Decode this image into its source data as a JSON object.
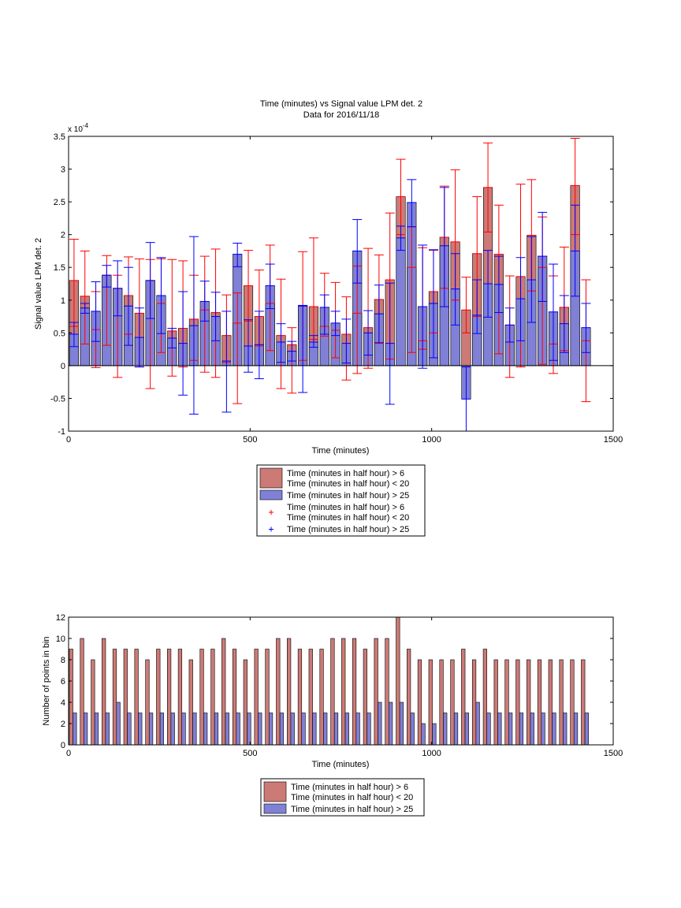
{
  "chart_data": [
    {
      "type": "bar",
      "title": "Time (minutes) vs Signal value LPM det. 2",
      "subtitle": "Data for 2016/11/18",
      "xlabel": "Time (minutes)",
      "ylabel": "Signal value LPM det. 2",
      "exponent_label": "x 10",
      "exponent_power": "-4",
      "xlim": [
        0,
        1500
      ],
      "ylim": [
        -1,
        3.5
      ],
      "xticks": [
        "0",
        "500",
        "1000",
        "1500"
      ],
      "yticks": [
        "-1",
        "-0.5",
        "0",
        "0.5",
        "1",
        "1.5",
        "2",
        "2.5",
        "3",
        "3.5"
      ],
      "ytick_values": [
        -1,
        -0.5,
        0,
        0.5,
        1,
        1.5,
        2,
        2.5,
        3,
        3.5
      ],
      "grid": false,
      "legend_position": "below plot",
      "legend": [
        {
          "label": "Time (minutes in half hour) > 6\nTime (minutes in half hour) < 20",
          "kind": "patch",
          "color": "#cc7a76"
        },
        {
          "label": "Time (minutes in half hour) > 25",
          "kind": "patch",
          "color": "#8080d6"
        },
        {
          "label": "Time (minutes in half hour) > 6\nTime (minutes in half hour) < 20",
          "kind": "marker",
          "color": "#ff0000"
        },
        {
          "label": "Time (minutes in half hour) > 25",
          "kind": "marker",
          "color": "#0000ff"
        }
      ],
      "series": [
        {
          "color": "#cc7a76",
          "errcolor": "#ff0000",
          "x": [
            15,
            45,
            75,
            105,
            135,
            165,
            195,
            225,
            255,
            285,
            315,
            345,
            375,
            405,
            435,
            465,
            495,
            525,
            555,
            585,
            615,
            645,
            675,
            705,
            735,
            765,
            795,
            825,
            855,
            885,
            915,
            945,
            975,
            1005,
            1035,
            1065,
            1095,
            1125,
            1155,
            1185,
            1215,
            1245,
            1275,
            1305,
            1335,
            1365,
            1395,
            1425
          ],
          "values": [
            1.3,
            1.06,
            0.55,
            1.38,
            1.18,
            1.07,
            0.8,
            1.3,
            0.95,
            0.53,
            0.57,
            0.71,
            0.85,
            0.81,
            0.46,
            0.65,
            1.22,
            0.75,
            0.95,
            0.46,
            0.32,
            0.91,
            0.9,
            0.6,
            0.54,
            0.48,
            0.8,
            0.58,
            1.01,
            1.31,
            2.58,
            1.5,
            0.38,
            1.13,
            1.96,
            1.89,
            0.85,
            1.71,
            2.72,
            1.7,
            0.62,
            1.36,
            1.99,
            1.5,
            0.33,
            0.89,
            2.75,
            0.38
          ],
          "err_low": [
            0.6,
            0.33,
            -0.03,
            0.31,
            -0.18,
            0.48,
            -0.02,
            -0.35,
            0.2,
            -0.16,
            -0.02,
            0.08,
            -0.1,
            -0.18,
            0.05,
            -0.58,
            0.68,
            0.3,
            0.23,
            -0.35,
            -0.42,
            0.08,
            0.4,
            0.45,
            0.12,
            -0.22,
            -0.12,
            -0.04,
            0.34,
            0.1,
            2.0,
            0.2,
            0.25,
            0.5,
            1.18,
            1.0,
            0.5,
            0.75,
            2.04,
            0.18,
            -0.18,
            -0.02,
            1.14,
            0.02,
            -0.12,
            0.23,
            2.0,
            -0.55
          ],
          "err_high": [
            1.93,
            1.75,
            1.13,
            1.68,
            1.38,
            1.66,
            1.63,
            1.62,
            1.63,
            1.62,
            1.6,
            1.38,
            1.67,
            1.78,
            1.08,
            1.11,
            1.76,
            1.46,
            1.84,
            1.32,
            0.58,
            1.74,
            1.95,
            1.41,
            1.27,
            1.05,
            1.52,
            1.79,
            1.69,
            2.33,
            3.15,
            2.12,
            1.8,
            1.76,
            2.74,
            2.99,
            1.35,
            2.58,
            3.4,
            2.45,
            1.37,
            2.77,
            2.84,
            2.27,
            1.37,
            1.81,
            3.47,
            1.31
          ]
        },
        {
          "color": "#8080d6",
          "errcolor": "#0000ff",
          "x": [
            15,
            45,
            75,
            105,
            135,
            165,
            195,
            225,
            255,
            285,
            315,
            345,
            375,
            405,
            435,
            465,
            495,
            525,
            555,
            585,
            615,
            645,
            675,
            705,
            735,
            765,
            795,
            825,
            855,
            885,
            915,
            945,
            975,
            1005,
            1035,
            1065,
            1095,
            1125,
            1155,
            1185,
            1215,
            1245,
            1275,
            1305,
            1335,
            1365,
            1395,
            1425
          ],
          "values": [
            0.48,
            0.88,
            0.83,
            1.38,
            1.18,
            0.91,
            0.43,
            1.3,
            1.07,
            0.42,
            0.34,
            0.61,
            0.98,
            0.75,
            0.07,
            1.7,
            0.3,
            0.32,
            1.22,
            0.36,
            0.22,
            0.91,
            0.36,
            0.89,
            0.65,
            0.34,
            1.75,
            0.5,
            0.79,
            0.34,
            1.95,
            2.49,
            0.9,
            0.95,
            1.83,
            1.17,
            -0.51,
            0.77,
            1.25,
            1.24,
            0.62,
            1.02,
            1.31,
            1.67,
            0.82,
            0.64,
            1.75,
            0.58
          ],
          "err_low": [
            0.29,
            0.8,
            0.37,
            1.2,
            0.76,
            0.31,
            -0.02,
            0.72,
            0.49,
            0.27,
            -0.45,
            -0.74,
            0.68,
            0.38,
            -0.71,
            1.51,
            -0.1,
            -0.2,
            0.87,
            0.05,
            0.07,
            -0.41,
            0.28,
            0.48,
            0.46,
            0.04,
            1.26,
            0.16,
            0.35,
            -0.59,
            1.76,
            2.12,
            -0.04,
            0.12,
            0.9,
            0.62,
            -1.0,
            0.49,
            0.74,
            0.81,
            0.36,
            0.38,
            0.66,
            0.98,
            0.08,
            0.2,
            1.06,
            0.2
          ],
          "err_high": [
            0.66,
            0.95,
            1.28,
            1.53,
            1.6,
            1.5,
            0.88,
            1.88,
            1.65,
            0.57,
            1.13,
            1.97,
            1.29,
            1.12,
            0.83,
            1.87,
            0.7,
            0.83,
            1.55,
            0.64,
            0.37,
            0.92,
            0.46,
            1.08,
            0.83,
            0.71,
            2.23,
            0.84,
            1.23,
            1.26,
            2.13,
            2.84,
            1.84,
            1.77,
            2.72,
            1.71,
            -0.02,
            1.31,
            1.76,
            1.67,
            0.88,
            1.65,
            1.97,
            2.34,
            1.55,
            1.07,
            2.45,
            0.95
          ]
        }
      ]
    },
    {
      "type": "bar",
      "title": "",
      "xlabel": "Time (minutes)",
      "ylabel": "Number of points in bin",
      "xlim": [
        0,
        1500
      ],
      "ylim": [
        0,
        12
      ],
      "xticks": [
        "0",
        "500",
        "1000",
        "1500"
      ],
      "yticks": [
        "0",
        "2",
        "4",
        "6",
        "8",
        "10",
        "12"
      ],
      "ytick_values": [
        0,
        2,
        4,
        6,
        8,
        10,
        12
      ],
      "grid": false,
      "legend_position": "below plot",
      "legend": [
        {
          "label": "Time (minutes in half hour) > 6\nTime (minutes in half hour) < 20",
          "kind": "patch",
          "color": "#cc7a76"
        },
        {
          "label": "Time (minutes in half hour) > 25",
          "kind": "patch",
          "color": "#8080d6"
        }
      ],
      "series": [
        {
          "color": "#cc7a76",
          "x": [
            7,
            37,
            67,
            97,
            127,
            157,
            187,
            217,
            247,
            277,
            307,
            337,
            367,
            397,
            427,
            457,
            487,
            517,
            547,
            577,
            607,
            637,
            667,
            697,
            727,
            757,
            787,
            817,
            847,
            877,
            907,
            937,
            967,
            997,
            1027,
            1057,
            1087,
            1117,
            1147,
            1177,
            1207,
            1237,
            1267,
            1297,
            1327,
            1357,
            1387,
            1417
          ],
          "values": [
            9,
            10,
            8,
            10,
            9,
            9,
            9,
            8,
            9,
            9,
            9,
            8,
            9,
            9,
            10,
            9,
            8,
            9,
            9,
            10,
            10,
            9,
            9,
            9,
            10,
            10,
            10,
            9,
            10,
            10,
            12,
            9,
            8,
            8,
            8,
            8,
            9,
            8,
            9,
            8,
            8,
            8,
            8,
            8,
            8,
            8,
            8,
            8
          ]
        },
        {
          "color": "#8080d6",
          "x": [
            17,
            47,
            77,
            107,
            137,
            167,
            197,
            227,
            257,
            287,
            317,
            347,
            377,
            407,
            437,
            467,
            497,
            527,
            557,
            587,
            617,
            647,
            677,
            707,
            737,
            767,
            797,
            827,
            857,
            887,
            917,
            947,
            977,
            1007,
            1037,
            1067,
            1097,
            1127,
            1157,
            1187,
            1217,
            1247,
            1277,
            1307,
            1337,
            1367,
            1397,
            1427
          ],
          "values": [
            3,
            3,
            3,
            3,
            4,
            3,
            3,
            3,
            3,
            3,
            3,
            3,
            3,
            3,
            3,
            3,
            3,
            3,
            3,
            3,
            3,
            3,
            3,
            3,
            3,
            3,
            3,
            3,
            4,
            4,
            4,
            3,
            2,
            2,
            3,
            3,
            3,
            4,
            3,
            3,
            3,
            3,
            3,
            3,
            3,
            3,
            3,
            3
          ]
        }
      ]
    }
  ]
}
